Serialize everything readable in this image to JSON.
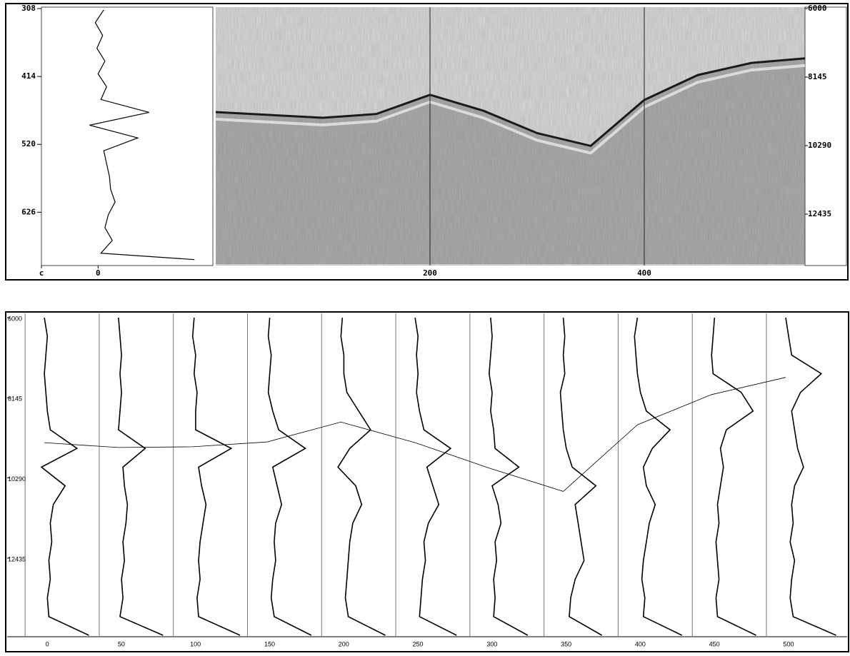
{
  "chart_data": [
    {
      "type": "line",
      "x_label_c": "c",
      "x": [
        310,
        330,
        350,
        370,
        390,
        410,
        430,
        450,
        470,
        490,
        510,
        530,
        550,
        570,
        590,
        610,
        630,
        650,
        670,
        690,
        700
      ],
      "values": [
        10,
        -5,
        8,
        -2,
        12,
        0,
        15,
        5,
        90,
        -15,
        70,
        10,
        15,
        20,
        22,
        30,
        18,
        12,
        25,
        5,
        170
      ],
      "color": "#000000",
      "xlim": [
        -100,
        200
      ],
      "xticks": [
        {
          "value": -100,
          "label": "c"
        },
        0
      ],
      "ylim": [
        308,
        707
      ],
      "yticks": [
        308,
        414,
        520,
        626
      ]
    },
    {
      "type": "section",
      "xlim": [
        0,
        550
      ],
      "xticks": [
        200,
        400
      ],
      "ylim": [
        6000,
        14000
      ],
      "yticks": [
        6000,
        8145,
        10290,
        12435
      ],
      "horizon": {
        "x": [
          0,
          50,
          100,
          150,
          200,
          250,
          300,
          350,
          400,
          450,
          500,
          550
        ],
        "y": [
          9240,
          9330,
          9420,
          9300,
          8700,
          9200,
          9900,
          10300,
          8860,
          8080,
          7700,
          7560
        ]
      },
      "grid": true
    },
    {
      "type": "traces",
      "xlim": [
        -15,
        540
      ],
      "xticks": [
        0,
        50,
        100,
        150,
        200,
        250,
        300,
        350,
        400,
        450,
        500
      ],
      "ylim": [
        6000,
        14500
      ],
      "yticks": [
        6000,
        8145,
        10290,
        12435
      ],
      "y": [
        6000,
        6500,
        7000,
        7500,
        8000,
        8500,
        9000,
        9500,
        10000,
        10500,
        11000,
        11500,
        12000,
        12500,
        13000,
        13500,
        14000,
        14500
      ],
      "traces": [
        [
          0,
          2,
          1,
          0,
          1,
          2,
          4,
          22,
          -2,
          14,
          6,
          4,
          5,
          3,
          4,
          2,
          3,
          30
        ],
        [
          0,
          1,
          2,
          1,
          2,
          1,
          0,
          18,
          3,
          4,
          6,
          5,
          3,
          4,
          2,
          3,
          1,
          30
        ],
        [
          1,
          0,
          2,
          1,
          3,
          2,
          2,
          26,
          4,
          6,
          9,
          7,
          5,
          4,
          5,
          3,
          4,
          32
        ],
        [
          2,
          1,
          3,
          2,
          1,
          4,
          8,
          26,
          4,
          7,
          10,
          6,
          5,
          6,
          4,
          3,
          5,
          30
        ],
        [
          1,
          0,
          2,
          2,
          4,
          12,
          20,
          6,
          -2,
          10,
          14,
          8,
          6,
          5,
          4,
          3,
          5,
          30
        ],
        [
          0,
          2,
          1,
          2,
          1,
          3,
          6,
          24,
          8,
          12,
          16,
          9,
          6,
          7,
          5,
          4,
          3,
          28
        ],
        [
          1,
          2,
          1,
          0,
          2,
          1,
          3,
          4,
          20,
          2,
          6,
          8,
          4,
          5,
          3,
          4,
          3,
          26
        ],
        [
          0,
          1,
          0,
          1,
          -2,
          -1,
          0,
          2,
          6,
          22,
          8,
          10,
          12,
          14,
          8,
          5,
          4,
          26
        ],
        [
          0,
          -2,
          -1,
          0,
          2,
          6,
          22,
          10,
          4,
          6,
          12,
          8,
          6,
          4,
          3,
          5,
          4,
          30
        ],
        [
          2,
          1,
          0,
          1,
          20,
          28,
          10,
          6,
          8,
          6,
          4,
          5,
          3,
          4,
          5,
          3,
          4,
          30
        ],
        [
          0,
          2,
          4,
          24,
          10,
          4,
          6,
          8,
          12,
          6,
          4,
          5,
          3,
          6,
          4,
          3,
          5,
          34
        ]
      ],
      "horizon": {
        "x": [
          0,
          50,
          100,
          150,
          200,
          250,
          300,
          350,
          400,
          450,
          500
        ],
        "y": [
          9345,
          9474,
          9456,
          9327,
          8794,
          9345,
          10025,
          10650,
          8867,
          8059,
          7599
        ]
      },
      "color": "#000000"
    }
  ]
}
